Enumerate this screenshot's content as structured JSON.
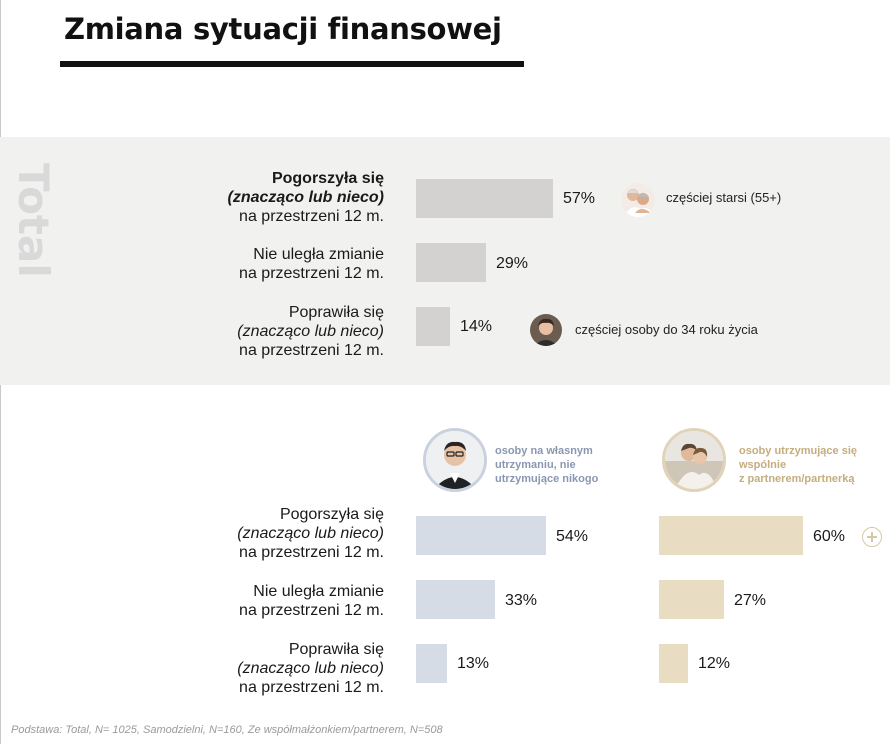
{
  "title": "Zmiana sytuacji finansowej",
  "total_label": "Total",
  "rows": [
    {
      "line1": "Pogorszyła się",
      "line2": "(znacząco lub nieco)",
      "line3": "na przestrzeni 12 m."
    },
    {
      "line1": "Nie uległa zmianie",
      "line2": "",
      "line3": "na przestrzeni 12 m."
    },
    {
      "line1": "Poprawiła się",
      "line2": "(znacząco lub nieco)",
      "line3": "na przestrzeni 12 m."
    }
  ],
  "total_notes": {
    "worse": "częściej starsi (55+)",
    "better": "częściej osoby do 34 roku życia"
  },
  "segments": {
    "self": {
      "line1": "osoby na własnym",
      "line2": "utrzymaniu, nie",
      "line3": "utrzymujące nikogo"
    },
    "partner": {
      "line1": "osoby utrzymujące się",
      "line2": "wspólnie",
      "line3": "z partnerem/partnerką"
    }
  },
  "chart_data": [
    {
      "type": "bar",
      "title": "Total",
      "categories": [
        "Pogorszyła się (znacząco lub nieco) na przestrzeni 12 m.",
        "Nie uległa zmianie na przestrzeni 12 m.",
        "Poprawiła się (znacząco lub nieco) na przestrzeni 12 m."
      ],
      "values": [
        57,
        29,
        14
      ],
      "value_labels": [
        "57%",
        "29%",
        "14%"
      ],
      "orientation": "horizontal",
      "xlim": [
        0,
        100
      ],
      "color": "#d3d2d1"
    },
    {
      "type": "bar",
      "categories": [
        "Pogorszyła się (znacząco lub nieco) na przestrzeni 12 m.",
        "Nie uległa zmianie na przestrzeni 12 m.",
        "Poprawiła się (znacząco lub nieco) na przestrzeni 12 m."
      ],
      "orientation": "horizontal",
      "xlim": [
        0,
        100
      ],
      "series": [
        {
          "name": "osoby na własnym utrzymaniu, nie utrzymujące nikogo",
          "values": [
            54,
            33,
            13
          ],
          "value_labels": [
            "54%",
            "33%",
            "13%"
          ],
          "color": "#d6dce6"
        },
        {
          "name": "osoby utrzymujące się wspólnie z partnerem/partnerką",
          "values": [
            60,
            27,
            12
          ],
          "value_labels": [
            "60%",
            "27%",
            "12%"
          ],
          "color": "#e8dcc3"
        }
      ]
    }
  ],
  "colors": {
    "total_bar": "#d3d2d1",
    "self_bar": "#d6dce6",
    "partner_bar": "#e8dcc3",
    "self_text": "#8a97b2",
    "partner_text": "#c4ad7f"
  },
  "footnote": "Podstawa: Total, N= 1025, Samodzielni, N=160, Ze współmałżonkiem/partnerem, N=508"
}
